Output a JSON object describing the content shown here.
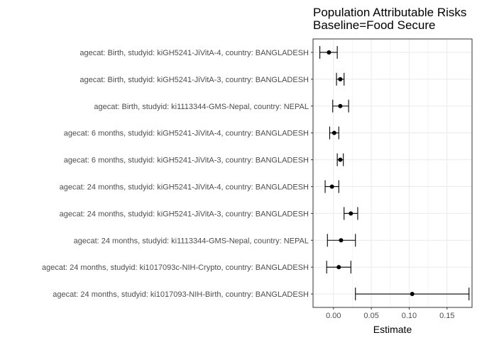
{
  "chart_data": {
    "type": "forest",
    "title_lines": [
      "Population Attributable Risks",
      "Baseline=Food Secure"
    ],
    "xlabel": "Estimate",
    "ylabel": "",
    "xlim": [
      -0.027,
      0.183
    ],
    "xticks": [
      0.0,
      0.05,
      0.1,
      0.15
    ],
    "xtick_labels": [
      "0.00",
      "0.05",
      "0.10",
      "0.15"
    ],
    "grid": true,
    "rows": [
      {
        "label": "agecat: Birth, studyid: kiGH5241-JiVitA-4, country: BANGLADESH",
        "estimate": -0.006,
        "lower": -0.018,
        "upper": 0.005
      },
      {
        "label": "agecat: Birth, studyid: kiGH5241-JiVitA-3, country: BANGLADESH",
        "estimate": 0.009,
        "lower": 0.004,
        "upper": 0.014
      },
      {
        "label": "agecat: Birth, studyid: ki1113344-GMS-Nepal, country: NEPAL",
        "estimate": 0.009,
        "lower": -0.001,
        "upper": 0.02
      },
      {
        "label": "agecat: 6 months, studyid: kiGH5241-JiVitA-4, country: BANGLADESH",
        "estimate": 0.001,
        "lower": -0.005,
        "upper": 0.007
      },
      {
        "label": "agecat: 6 months, studyid: kiGH5241-JiVitA-3, country: BANGLADESH",
        "estimate": 0.009,
        "lower": 0.005,
        "upper": 0.013
      },
      {
        "label": "agecat: 24 months, studyid: kiGH5241-JiVitA-4, country: BANGLADESH",
        "estimate": -0.002,
        "lower": -0.011,
        "upper": 0.007
      },
      {
        "label": "agecat: 24 months, studyid: kiGH5241-JiVitA-3, country: BANGLADESH",
        "estimate": 0.023,
        "lower": 0.014,
        "upper": 0.032
      },
      {
        "label": "agecat: 24 months, studyid: ki1113344-GMS-Nepal, country: NEPAL",
        "estimate": 0.01,
        "lower": -0.008,
        "upper": 0.029
      },
      {
        "label": "agecat: 24 months, studyid: ki1017093c-NIH-Crypto, country: BANGLADESH",
        "estimate": 0.007,
        "lower": -0.009,
        "upper": 0.023
      },
      {
        "label": "agecat: 24 months, studyid: ki1017093-NIH-Birth, country: BANGLADESH",
        "estimate": 0.104,
        "lower": 0.029,
        "upper": 0.179
      }
    ],
    "colors": {
      "point": "#000000",
      "grid_major": "#ebebeb",
      "grid_minor": "#f5f5f5",
      "panel_border": "#333333"
    }
  }
}
